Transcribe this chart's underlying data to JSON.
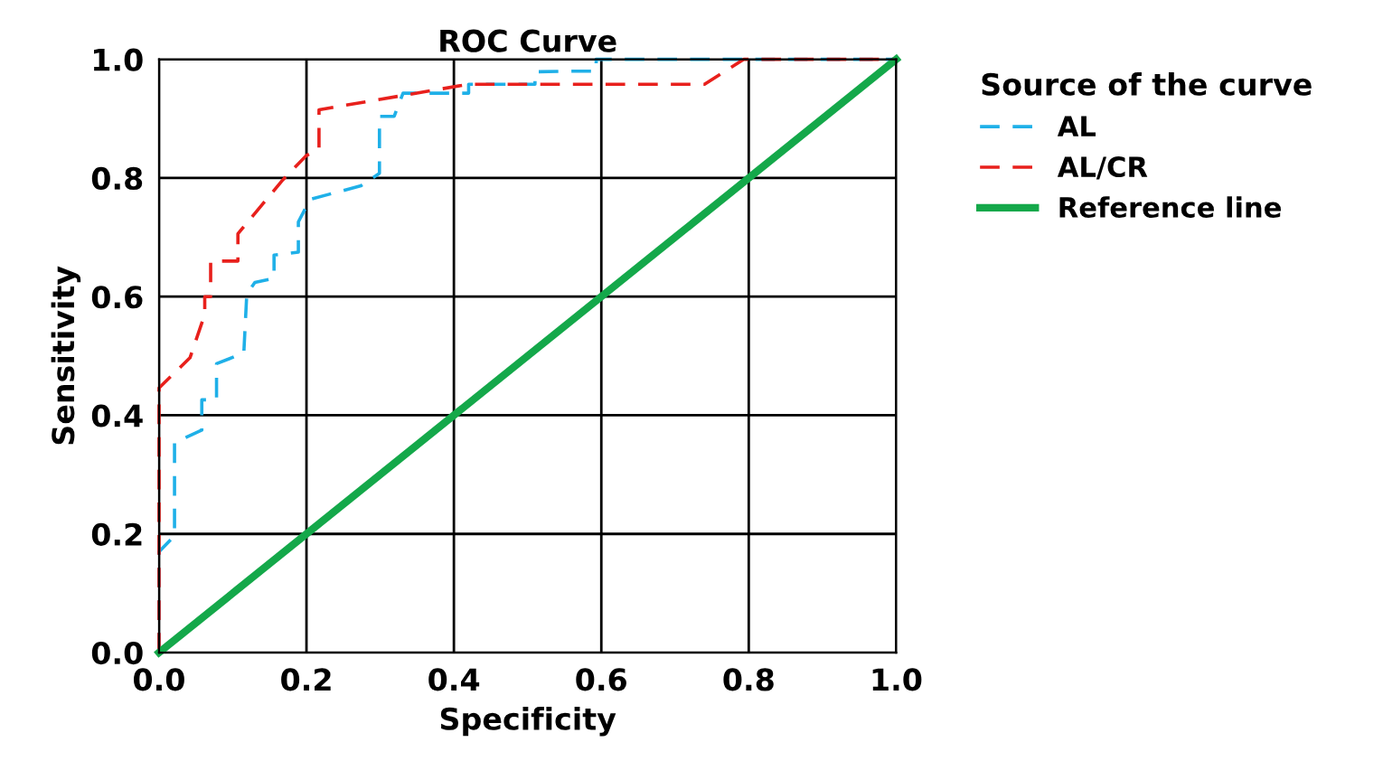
{
  "chart_data": {
    "type": "line",
    "title": "ROC Curve",
    "xlabel": "Specificity",
    "ylabel": "Sensitivity",
    "legend_title": "Source of the curve",
    "legend": "top right",
    "grid": true,
    "xlim": [
      0,
      1
    ],
    "ylim": [
      0,
      1
    ],
    "xticks": [
      {
        "value": 0,
        "label": "0.0"
      },
      0.2,
      0.4,
      0.6,
      0.8,
      {
        "value": 1,
        "label": "1.0"
      }
    ],
    "yticks": [
      {
        "value": 0,
        "label": "0.0"
      },
      0.2,
      0.4,
      0.6,
      0.8,
      {
        "value": 1,
        "label": "1.0"
      }
    ],
    "series": [
      {
        "name": "AL",
        "color": "#1fb0e8",
        "line_style": "dashed",
        "x": [
          0,
          0,
          0.021,
          0.021,
          0.058,
          0.058,
          0.078,
          0.078,
          0.115,
          0.119,
          0.13,
          0.156,
          0.156,
          0.189,
          0.189,
          0.205,
          0.274,
          0.299,
          0.299,
          0.319,
          0.331,
          0.42,
          0.42,
          0.51,
          0.51,
          0.55,
          0.593,
          0.593,
          1
        ],
        "values": [
          0,
          0.17,
          0.197,
          0.354,
          0.375,
          0.426,
          0.426,
          0.487,
          0.505,
          0.604,
          0.624,
          0.631,
          0.67,
          0.675,
          0.726,
          0.764,
          0.787,
          0.808,
          0.904,
          0.904,
          0.943,
          0.943,
          0.958,
          0.958,
          0.979,
          0.98,
          0.98,
          1,
          1
        ]
      },
      {
        "name": "AL/CR",
        "color": "#e8201c",
        "line_style": "dashed",
        "x": [
          0,
          0,
          0.042,
          0.062,
          0.062,
          0.07,
          0.07,
          0.107,
          0.107,
          0.168,
          0.2,
          0.217,
          0.217,
          0.42,
          0.74,
          0.793,
          1
        ],
        "values": [
          0,
          0.446,
          0.497,
          0.57,
          0.6,
          0.6,
          0.66,
          0.66,
          0.706,
          0.797,
          0.838,
          0.848,
          0.915,
          0.958,
          0.958,
          1,
          1
        ]
      },
      {
        "name": "Reference line",
        "color": "#14a84a",
        "line_style": "solid",
        "x": [
          0,
          1
        ],
        "values": [
          0,
          1
        ]
      }
    ]
  }
}
